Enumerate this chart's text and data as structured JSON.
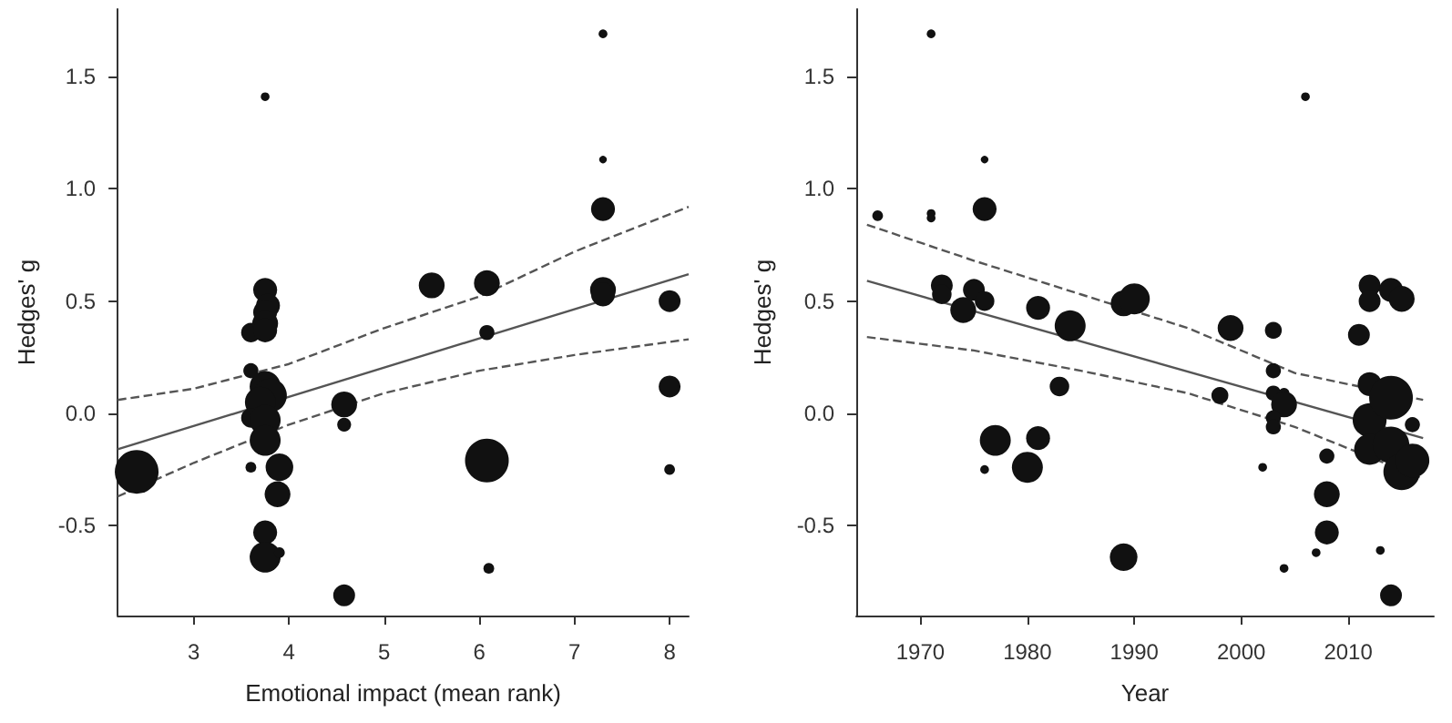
{
  "chart_data": [
    {
      "type": "bubble",
      "xlabel": "Emotional impact (mean rank)",
      "ylabel": "Hedges' g",
      "xlim": [
        2.2,
        8.2
      ],
      "ylim": [
        -0.9,
        1.8
      ],
      "xticks": [
        3,
        4,
        5,
        6,
        7,
        8
      ],
      "yticks": [
        {
          "value": -0.5,
          "label": "-0.5"
        },
        {
          "value": 0,
          "label": "0.0"
        },
        {
          "value": 0.5,
          "label": "0.5"
        },
        {
          "value": 1,
          "label": "1.0"
        },
        {
          "value": 1.5,
          "label": "1.5"
        }
      ],
      "grid": false,
      "marker": "circle",
      "series": [
        {
          "type": "bubble",
          "color": "#111111",
          "x": [
            3.75,
            7.3,
            7.3,
            7.3,
            3.6,
            3.75,
            3.78,
            3.75,
            3.75,
            3.75,
            5.5,
            6.08,
            6.08,
            7.3,
            7.3,
            8,
            3.6,
            3.75,
            3.8,
            3.7,
            3.6,
            3.75,
            3.75,
            3.6,
            3.9,
            3.88,
            3.75,
            3.75,
            3.9,
            2.4,
            4.58,
            4.58,
            4.58,
            6.08,
            6.1,
            8,
            8
          ],
          "values": [
            1.41,
            1.69,
            1.13,
            0.91,
            0.36,
            0.55,
            0.48,
            0.45,
            0.4,
            0.37,
            0.57,
            0.58,
            0.36,
            0.55,
            0.53,
            0.5,
            0.19,
            0.12,
            0.08,
            0.05,
            -0.02,
            -0.03,
            -0.12,
            -0.24,
            -0.24,
            -0.36,
            -0.53,
            -0.64,
            -0.62,
            -0.26,
            0.04,
            -0.05,
            -0.81,
            -0.21,
            -0.69,
            0.12,
            -0.25
          ],
          "sizes": [
            0.04,
            0.04,
            0.03,
            0.3,
            0.2,
            0.3,
            0.3,
            0.3,
            0.35,
            0.3,
            0.35,
            0.35,
            0.12,
            0.35,
            0.3,
            0.25,
            0.12,
            0.5,
            0.6,
            0.5,
            0.2,
            0.5,
            0.5,
            0.06,
            0.4,
            0.35,
            0.3,
            0.5,
            0.06,
            1,
            0.35,
            0.1,
            0.25,
            1,
            0.06,
            0.25,
            0.06
          ]
        },
        {
          "type": "line",
          "color": "#555555",
          "marker": "none",
          "line_style": "solid",
          "x": [
            2.2,
            8.2
          ],
          "values": [
            -0.16,
            0.62
          ]
        },
        {
          "type": "line",
          "color": "#555555",
          "marker": "none",
          "line_style": "dashed",
          "x": [
            2.2,
            3,
            4,
            5,
            6,
            7,
            8.2
          ],
          "values": [
            0.06,
            0.11,
            0.22,
            0.38,
            0.52,
            0.72,
            0.92
          ]
        },
        {
          "type": "line",
          "color": "#555555",
          "marker": "none",
          "line_style": "dashed",
          "x": [
            2.2,
            3,
            4,
            5,
            6,
            7,
            8.2
          ],
          "values": [
            -0.37,
            -0.22,
            -0.05,
            0.09,
            0.19,
            0.26,
            0.33
          ]
        }
      ]
    },
    {
      "type": "bubble",
      "xlabel": "Year",
      "ylabel": "Hedges' g",
      "xlim": [
        1964,
        2018
      ],
      "ylim": [
        -0.9,
        1.8
      ],
      "xticks": [
        1970,
        1980,
        1990,
        2000,
        2010
      ],
      "yticks": [
        {
          "value": -0.5,
          "label": "-0.5"
        },
        {
          "value": 0,
          "label": "0.0"
        },
        {
          "value": 0.5,
          "label": "0.5"
        },
        {
          "value": 1,
          "label": "1.0"
        },
        {
          "value": 1.5,
          "label": "1.5"
        }
      ],
      "grid": false,
      "marker": "circle",
      "series": [
        {
          "type": "bubble",
          "color": "#111111",
          "x": [
            1966,
            1971,
            1971,
            1971,
            1972,
            1972,
            1974,
            1975,
            1976,
            1976,
            1976,
            1981,
            1984,
            1989,
            1990,
            1999,
            2003,
            2006,
            2011,
            2012,
            2012,
            2014,
            2015,
            1977,
            1980,
            1981,
            1976,
            1983,
            1989,
            1998,
            2002,
            2003,
            2003,
            2004,
            2004,
            2003,
            2003,
            2004,
            2007,
            2008,
            2008,
            2008,
            2012,
            2012,
            2012,
            2014,
            2014,
            2015,
            2016,
            2016,
            2013,
            2014
          ],
          "values": [
            0.88,
            1.69,
            0.89,
            0.87,
            0.57,
            0.53,
            0.46,
            0.55,
            1.13,
            0.91,
            0.5,
            0.47,
            0.39,
            0.49,
            0.51,
            0.38,
            0.37,
            1.41,
            0.35,
            0.57,
            0.5,
            0.55,
            0.51,
            -0.12,
            -0.24,
            -0.11,
            -0.25,
            0.12,
            -0.64,
            0.08,
            -0.24,
            0.19,
            0.09,
            0.09,
            0.04,
            -0.02,
            -0.06,
            -0.69,
            -0.62,
            -0.19,
            -0.36,
            -0.53,
            0.13,
            -0.03,
            -0.16,
            0.07,
            -0.14,
            -0.26,
            -0.21,
            -0.05,
            -0.61,
            -0.81
          ],
          "sizes": [
            0.06,
            0.04,
            0.04,
            0.04,
            0.25,
            0.2,
            0.35,
            0.25,
            0.03,
            0.3,
            0.2,
            0.3,
            0.5,
            0.35,
            0.5,
            0.35,
            0.15,
            0.04,
            0.25,
            0.25,
            0.25,
            0.3,
            0.35,
            0.5,
            0.5,
            0.3,
            0.04,
            0.2,
            0.4,
            0.15,
            0.04,
            0.12,
            0.12,
            0.06,
            0.35,
            0.12,
            0.12,
            0.04,
            0.04,
            0.12,
            0.35,
            0.3,
            0.3,
            0.6,
            0.5,
            1,
            0.7,
            0.7,
            0.6,
            0.12,
            0.04,
            0.25
          ]
        },
        {
          "type": "line",
          "color": "#555555",
          "marker": "none",
          "line_style": "solid",
          "x": [
            1965,
            2017
          ],
          "values": [
            0.59,
            -0.11
          ]
        },
        {
          "type": "line",
          "color": "#555555",
          "marker": "none",
          "line_style": "dashed",
          "x": [
            1965,
            1975,
            1985,
            1995,
            2005,
            2017
          ],
          "values": [
            0.84,
            0.68,
            0.53,
            0.38,
            0.18,
            0.06
          ]
        },
        {
          "type": "line",
          "color": "#555555",
          "marker": "none",
          "line_style": "dashed",
          "x": [
            1965,
            1975,
            1985,
            1995,
            2005,
            2017
          ],
          "values": [
            0.34,
            0.28,
            0.19,
            0.09,
            -0.06,
            -0.29
          ]
        }
      ]
    }
  ]
}
